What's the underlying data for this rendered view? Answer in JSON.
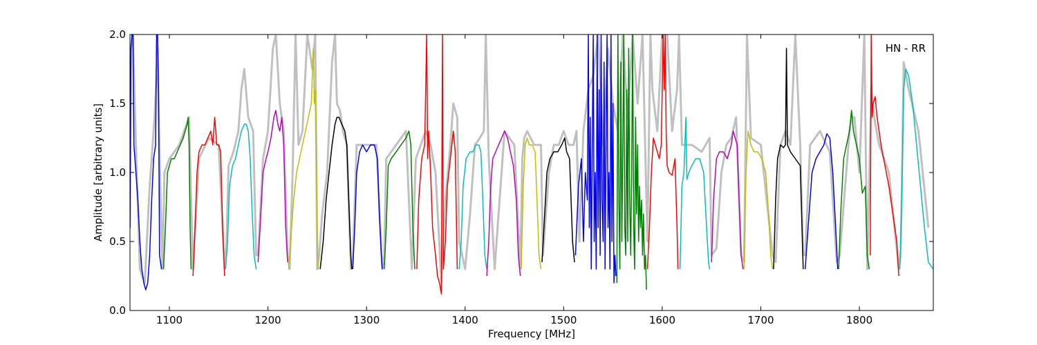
{
  "chart_data": {
    "type": "line",
    "title": "",
    "xlabel": "Frequency [MHz]",
    "ylabel": "Amplitude [arbitrary units]",
    "xlim": [
      1060,
      1875
    ],
    "ylim": [
      0.0,
      2.0
    ],
    "xticks": [
      1100,
      1200,
      1300,
      1400,
      1500,
      1600,
      1700,
      1800
    ],
    "yticks": [
      0.0,
      0.5,
      1.0,
      1.5,
      2.0
    ],
    "xtick_labels": [
      "1100",
      "1200",
      "1300",
      "1400",
      "1500",
      "1600",
      "1700",
      "1800"
    ],
    "ytick_labels": [
      "0.0",
      "0.5",
      "1.0",
      "1.5",
      "2.0"
    ],
    "annotation": "HN - RR",
    "background_color": "#c0c0c0",
    "background": {
      "x": [
        1060,
        1061,
        1063,
        1066,
        1070,
        1075,
        1080,
        1085,
        1088,
        1090,
        1093,
        1095,
        1100,
        1105,
        1110,
        1115,
        1120,
        1122,
        1124,
        1130,
        1140,
        1150,
        1156,
        1158,
        1160,
        1165,
        1170,
        1173,
        1176,
        1180,
        1185,
        1188,
        1190,
        1195,
        1200,
        1205,
        1208,
        1212,
        1216,
        1220,
        1222,
        1225,
        1228,
        1231,
        1235,
        1240,
        1245,
        1248,
        1250,
        1252,
        1255,
        1260,
        1265,
        1268,
        1270,
        1273,
        1276,
        1280,
        1284,
        1286,
        1290,
        1300,
        1310,
        1316,
        1318,
        1320,
        1330,
        1340,
        1346,
        1350,
        1355,
        1360,
        1365,
        1370,
        1376,
        1380,
        1385,
        1388,
        1392,
        1394,
        1400,
        1405,
        1410,
        1415,
        1419,
        1421,
        1424,
        1430,
        1440,
        1450,
        1456,
        1458,
        1460,
        1463,
        1470,
        1477,
        1479,
        1485,
        1490,
        1495,
        1500,
        1505,
        1510,
        1513,
        1516,
        1520,
        1525,
        1530,
        1535,
        1540,
        1545,
        1550,
        1555,
        1560,
        1565,
        1570,
        1575,
        1580,
        1585,
        1588,
        1590,
        1595,
        1600,
        1605,
        1610,
        1615,
        1617,
        1620,
        1625,
        1630,
        1640,
        1648,
        1650,
        1655,
        1660,
        1665,
        1670,
        1675,
        1680,
        1683,
        1686,
        1690,
        1700,
        1712,
        1715,
        1720,
        1725,
        1730,
        1735,
        1740,
        1743,
        1745,
        1750,
        1760,
        1770,
        1777,
        1780,
        1790,
        1792,
        1795,
        1800,
        1805,
        1808,
        1812,
        1815,
        1820,
        1830,
        1840,
        1842,
        1845,
        1850,
        1860,
        1870
      ],
      "y": [
        0.6,
        1.9,
        2.0,
        1.2,
        0.3,
        0.2,
        0.9,
        1.4,
        1.9,
        1.1,
        0.3,
        1.0,
        1.1,
        1.15,
        1.2,
        1.3,
        1.4,
        0.8,
        0.3,
        1.1,
        1.25,
        1.2,
        0.3,
        0.5,
        1.05,
        1.15,
        1.3,
        1.6,
        1.75,
        1.4,
        1.3,
        0.4,
        0.4,
        1.1,
        1.3,
        1.9,
        2.0,
        1.5,
        1.3,
        0.4,
        0.3,
        1.0,
        2.0,
        1.2,
        1.3,
        2.0,
        1.75,
        2.0,
        0.3,
        0.4,
        0.7,
        1.0,
        1.8,
        2.0,
        1.5,
        1.45,
        1.3,
        1.2,
        0.3,
        0.35,
        1.2,
        1.2,
        1.2,
        0.3,
        0.4,
        1.1,
        1.2,
        1.3,
        0.3,
        1.1,
        1.2,
        1.3,
        1.2,
        1.0,
        0.2,
        0.8,
        1.2,
        1.5,
        1.4,
        0.5,
        0.3,
        0.7,
        1.2,
        1.25,
        1.3,
        2.0,
        1.1,
        0.3,
        1.3,
        1.2,
        0.3,
        1.1,
        1.25,
        1.3,
        1.2,
        1.2,
        0.4,
        1.0,
        1.2,
        1.2,
        1.3,
        1.2,
        1.2,
        1.3,
        0.5,
        1.3,
        1.6,
        1.7,
        2.0,
        1.2,
        1.9,
        1.5,
        1.3,
        2.0,
        1.4,
        2.0,
        1.5,
        2.0,
        0.5,
        2.0,
        1.6,
        1.3,
        2.0,
        2.0,
        1.3,
        1.6,
        2.0,
        1.2,
        1.2,
        1.2,
        1.15,
        1.25,
        0.4,
        0.45,
        1.0,
        1.2,
        1.25,
        1.4,
        0.4,
        0.35,
        2.0,
        1.25,
        1.2,
        0.4,
        0.35,
        1.2,
        1.3,
        1.2,
        2.0,
        1.2,
        0.4,
        0.4,
        1.2,
        1.3,
        1.15,
        0.35,
        0.4,
        1.3,
        1.4,
        1.4,
        1.0,
        2.0,
        0.3,
        1.6,
        1.4,
        1.2,
        1.0,
        0.3,
        0.4,
        1.8,
        1.6,
        1.3,
        0.6
      ]
    },
    "series": [
      {
        "color": "#0000ff",
        "x": [
          1060,
          1061,
          1062,
          1063,
          1064,
          1066,
          1068,
          1070,
          1072,
          1074,
          1076,
          1078,
          1080,
          1082,
          1084,
          1086,
          1087,
          1088,
          1089,
          1090,
          1092
        ],
        "y": [
          0.6,
          1.9,
          2.0,
          2.0,
          1.2,
          1.0,
          0.8,
          0.5,
          0.3,
          0.2,
          0.15,
          0.2,
          0.4,
          0.8,
          1.1,
          1.2,
          2.0,
          2.0,
          1.6,
          0.4,
          0.3
        ]
      },
      {
        "color": "#008000",
        "x": [
          1094,
          1096,
          1098,
          1100,
          1102,
          1105,
          1108,
          1111,
          1114,
          1116,
          1118,
          1119,
          1120,
          1121,
          1122
        ],
        "y": [
          0.3,
          0.6,
          1.0,
          1.05,
          1.1,
          1.1,
          1.15,
          1.2,
          1.25,
          1.3,
          1.35,
          1.4,
          1.2,
          0.6,
          0.3
        ]
      },
      {
        "color": "#ff0000",
        "x": [
          1124,
          1126,
          1128,
          1130,
          1133,
          1136,
          1139,
          1142,
          1144,
          1146,
          1148,
          1150,
          1152,
          1154,
          1156
        ],
        "y": [
          0.25,
          0.6,
          1.0,
          1.15,
          1.2,
          1.2,
          1.25,
          1.3,
          1.2,
          1.4,
          1.2,
          1.2,
          1.15,
          0.6,
          0.25
        ]
      },
      {
        "color": "#00bfbf",
        "x": [
          1157,
          1159,
          1161,
          1164,
          1167,
          1170,
          1173,
          1176,
          1178,
          1180,
          1182,
          1184,
          1186,
          1188
        ],
        "y": [
          0.3,
          0.5,
          0.9,
          1.05,
          1.1,
          1.2,
          1.3,
          1.35,
          1.35,
          1.3,
          1.1,
          0.7,
          0.4,
          0.3
        ]
      },
      {
        "color": "#bf00bf",
        "x": [
          1190,
          1192,
          1195,
          1198,
          1200,
          1203,
          1206,
          1208,
          1210,
          1212,
          1214,
          1216,
          1218,
          1220
        ],
        "y": [
          0.35,
          0.6,
          1.0,
          1.1,
          1.15,
          1.25,
          1.4,
          1.45,
          1.35,
          1.3,
          1.4,
          1.2,
          0.6,
          0.35
        ]
      },
      {
        "color": "#bfbf00",
        "x": [
          1221,
          1223,
          1226,
          1229,
          1232,
          1235,
          1238,
          1241,
          1244,
          1246,
          1247,
          1248,
          1249,
          1250,
          1251
        ],
        "y": [
          0.3,
          0.5,
          0.8,
          1.0,
          1.1,
          1.2,
          1.3,
          1.4,
          1.5,
          1.9,
          1.5,
          1.6,
          1.2,
          0.6,
          0.3
        ]
      },
      {
        "color": "#000000",
        "x": [
          1253,
          1256,
          1259,
          1262,
          1265,
          1268,
          1270,
          1272,
          1275,
          1278,
          1280,
          1282,
          1284,
          1285
        ],
        "y": [
          0.3,
          0.5,
          0.8,
          1.0,
          1.2,
          1.35,
          1.4,
          1.4,
          1.35,
          1.3,
          1.2,
          0.8,
          0.4,
          0.3
        ]
      },
      {
        "color": "#0000ff",
        "x": [
          1286,
          1288,
          1290,
          1293,
          1296,
          1300,
          1304,
          1308,
          1311,
          1313,
          1315,
          1316
        ],
        "y": [
          0.3,
          0.6,
          1.0,
          1.15,
          1.2,
          1.15,
          1.2,
          1.2,
          1.1,
          0.7,
          0.4,
          0.3
        ]
      },
      {
        "color": "#008000",
        "x": [
          1318,
          1320,
          1322,
          1325,
          1330,
          1335,
          1340,
          1343,
          1345,
          1347,
          1349
        ],
        "y": [
          0.3,
          0.6,
          1.05,
          1.1,
          1.15,
          1.2,
          1.25,
          1.3,
          1.2,
          0.6,
          0.3
        ]
      },
      {
        "color": "#ff0000",
        "x": [
          1351,
          1353,
          1356,
          1359,
          1361,
          1362,
          1363,
          1365,
          1367,
          1370,
          1372,
          1374,
          1376,
          1377,
          1378,
          1380,
          1382,
          1385,
          1388,
          1390,
          1392
        ],
        "y": [
          0.3,
          0.8,
          1.1,
          1.2,
          2.0,
          1.1,
          1.3,
          1.0,
          0.6,
          0.4,
          0.25,
          0.2,
          0.12,
          2.0,
          0.3,
          0.5,
          0.9,
          1.1,
          1.3,
          1.15,
          0.3
        ]
      },
      {
        "color": "#00bfbf",
        "x": [
          1394,
          1396,
          1398,
          1401,
          1405,
          1408,
          1411,
          1414,
          1416,
          1418,
          1420,
          1422
        ],
        "y": [
          0.3,
          0.5,
          0.9,
          1.1,
          1.15,
          1.15,
          1.2,
          1.2,
          1.15,
          0.8,
          0.4,
          0.3
        ]
      },
      {
        "color": "#bf00bf",
        "x": [
          1422,
          1424,
          1426,
          1428,
          1431,
          1434,
          1437,
          1440,
          1443,
          1446,
          1449,
          1452,
          1454,
          1456
        ],
        "y": [
          0.25,
          0.5,
          0.9,
          1.1,
          1.15,
          1.2,
          1.25,
          1.3,
          1.25,
          1.15,
          1.05,
          0.8,
          0.4,
          0.25
        ]
      },
      {
        "color": "#bfbf00",
        "x": [
          1457,
          1459,
          1461,
          1463,
          1465,
          1468,
          1471,
          1473,
          1475,
          1477
        ],
        "y": [
          0.3,
          0.9,
          1.2,
          1.25,
          1.2,
          1.2,
          1.15,
          0.8,
          0.4,
          0.3
        ]
      },
      {
        "color": "#000000",
        "x": [
          1478,
          1480,
          1483,
          1486,
          1490,
          1494,
          1498,
          1501,
          1503,
          1506,
          1509,
          1511
        ],
        "y": [
          0.35,
          0.6,
          1.0,
          1.1,
          1.15,
          1.15,
          1.2,
          1.25,
          1.15,
          1.1,
          0.5,
          0.35
        ]
      },
      {
        "color": "#0000ff",
        "x": [
          1512,
          1515,
          1518,
          1520,
          1522,
          1524,
          1525,
          1526,
          1527,
          1528,
          1529,
          1530,
          1531,
          1532,
          1533,
          1534,
          1535,
          1536,
          1537,
          1538,
          1539,
          1540,
          1541,
          1542,
          1543,
          1544,
          1545,
          1546,
          1547,
          1548,
          1549,
          1550,
          1551,
          1552,
          1553
        ],
        "y": [
          0.4,
          0.9,
          1.1,
          0.5,
          1.0,
          0.8,
          2.0,
          0.6,
          1.4,
          0.3,
          1.2,
          2.0,
          0.5,
          1.0,
          0.3,
          2.0,
          0.6,
          1.6,
          0.4,
          2.0,
          0.8,
          0.5,
          1.8,
          0.3,
          1.2,
          2.0,
          0.6,
          1.0,
          0.3,
          2.0,
          0.5,
          1.5,
          0.2,
          0.4,
          0.25
        ]
      },
      {
        "color": "#008000",
        "x": [
          1554,
          1555,
          1556,
          1557,
          1558,
          1559,
          1560,
          1561,
          1562,
          1563,
          1564,
          1565,
          1566,
          1567,
          1568,
          1569,
          1570,
          1571,
          1572,
          1573,
          1574,
          1575,
          1576,
          1577,
          1578,
          1579,
          1580,
          1581,
          1582,
          1583,
          1584
        ],
        "y": [
          0.2,
          2.0,
          0.8,
          0.3,
          1.8,
          0.5,
          1.2,
          2.0,
          0.6,
          0.4,
          1.6,
          0.5,
          1.9,
          0.8,
          0.4,
          1.0,
          2.0,
          0.6,
          0.3,
          1.4,
          0.7,
          1.2,
          0.5,
          0.9,
          0.6,
          0.8,
          0.4,
          0.7,
          0.3,
          0.4,
          0.15
        ]
      },
      {
        "color": "#ff0000",
        "x": [
          1585,
          1587,
          1589,
          1591,
          1593,
          1595,
          1597,
          1599,
          1601,
          1602,
          1603,
          1604,
          1605,
          1607,
          1610,
          1613,
          1615,
          1616
        ],
        "y": [
          0.3,
          0.6,
          1.0,
          1.25,
          1.2,
          1.15,
          1.1,
          1.2,
          2.0,
          1.6,
          2.0,
          1.3,
          1.05,
          1.0,
          0.98,
          1.1,
          0.6,
          0.3
        ]
      },
      {
        "color": "#00bfbf",
        "x": [
          1618,
          1620,
          1622,
          1624,
          1625,
          1627,
          1630,
          1634,
          1638,
          1642,
          1645,
          1647,
          1648
        ],
        "y": [
          0.3,
          0.9,
          1.0,
          1.4,
          0.95,
          1.0,
          1.05,
          1.1,
          1.1,
          1.0,
          0.6,
          0.35,
          0.3
        ]
      },
      {
        "color": "#bf00bf",
        "x": [
          1650,
          1652,
          1655,
          1658,
          1662,
          1666,
          1670,
          1672,
          1674,
          1676,
          1678,
          1680,
          1682
        ],
        "y": [
          0.35,
          0.8,
          1.1,
          1.15,
          1.15,
          1.1,
          1.2,
          1.3,
          1.25,
          1.2,
          0.8,
          0.4,
          0.3
        ]
      },
      {
        "color": "#bfbf00",
        "x": [
          1683,
          1685,
          1687,
          1690,
          1693,
          1697,
          1701,
          1705,
          1708,
          1710,
          1712
        ],
        "y": [
          0.3,
          1.0,
          1.3,
          1.2,
          1.15,
          1.15,
          1.1,
          1.0,
          0.7,
          0.4,
          0.3
        ]
      },
      {
        "color": "#000000",
        "x": [
          1713,
          1715,
          1717,
          1720,
          1723,
          1725,
          1726,
          1727,
          1730,
          1735,
          1740,
          1743
        ],
        "y": [
          0.3,
          0.8,
          1.1,
          1.2,
          1.18,
          1.2,
          1.9,
          1.2,
          1.15,
          1.1,
          1.05,
          0.3
        ]
      },
      {
        "color": "#0000ff",
        "x": [
          1745,
          1748,
          1752,
          1756,
          1760,
          1764,
          1767,
          1770,
          1773,
          1776,
          1778
        ],
        "y": [
          0.3,
          0.6,
          1.0,
          1.1,
          1.15,
          1.2,
          1.28,
          1.25,
          1.0,
          0.6,
          0.3
        ]
      },
      {
        "color": "#008000",
        "x": [
          1779,
          1781,
          1784,
          1787,
          1790,
          1792,
          1794,
          1797,
          1800,
          1803,
          1806,
          1808,
          1810
        ],
        "y": [
          0.3,
          0.7,
          1.1,
          1.2,
          1.3,
          1.45,
          1.3,
          1.2,
          1.1,
          0.85,
          0.9,
          0.4,
          0.3
        ]
      },
      {
        "color": "#ff0000",
        "x": [
          1811,
          1812,
          1813,
          1814,
          1816,
          1818,
          1822,
          1826,
          1830,
          1834,
          1838,
          1840
        ],
        "y": [
          0.4,
          2.0,
          1.4,
          1.5,
          1.55,
          1.4,
          1.2,
          1.05,
          0.9,
          0.7,
          0.5,
          0.25
        ]
      },
      {
        "color": "#00bfbf",
        "x": [
          1841,
          1843,
          1845,
          1847,
          1850,
          1854,
          1858,
          1862,
          1866,
          1870,
          1875
        ],
        "y": [
          0.3,
          0.8,
          1.6,
          1.75,
          1.7,
          1.5,
          1.2,
          0.9,
          0.6,
          0.35,
          0.3
        ]
      }
    ]
  }
}
